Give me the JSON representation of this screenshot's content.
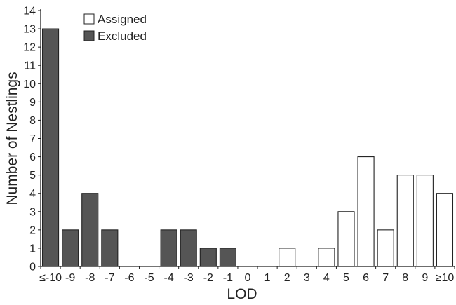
{
  "chart_data": {
    "type": "bar",
    "xlabel": "LOD",
    "ylabel": "Number of Nestlings",
    "ylim": [
      0,
      14
    ],
    "yticks": [
      0,
      1,
      2,
      3,
      4,
      5,
      6,
      7,
      8,
      9,
      10,
      11,
      12,
      13,
      14
    ],
    "grid": false,
    "legend_position": "top-left",
    "categories": [
      "≤-10",
      "-9",
      "-8",
      "-7",
      "-6",
      "-5",
      "-4",
      "-3",
      "-2",
      "-1",
      "0",
      "1",
      "2",
      "3",
      "4",
      "5",
      "6",
      "7",
      "8",
      "9",
      "≥10"
    ],
    "series": [
      {
        "name": "Assigned",
        "color": "#ffffff",
        "values": [
          0,
          0,
          0,
          0,
          0,
          0,
          0,
          0,
          0,
          0,
          0,
          0,
          1,
          0,
          1,
          3,
          6,
          2,
          5,
          5,
          4
        ]
      },
      {
        "name": "Excluded",
        "color": "#555555",
        "values": [
          13,
          2,
          4,
          2,
          0,
          0,
          2,
          2,
          1,
          1,
          0,
          0,
          0,
          0,
          0,
          0,
          0,
          0,
          0,
          0,
          0
        ]
      }
    ]
  }
}
